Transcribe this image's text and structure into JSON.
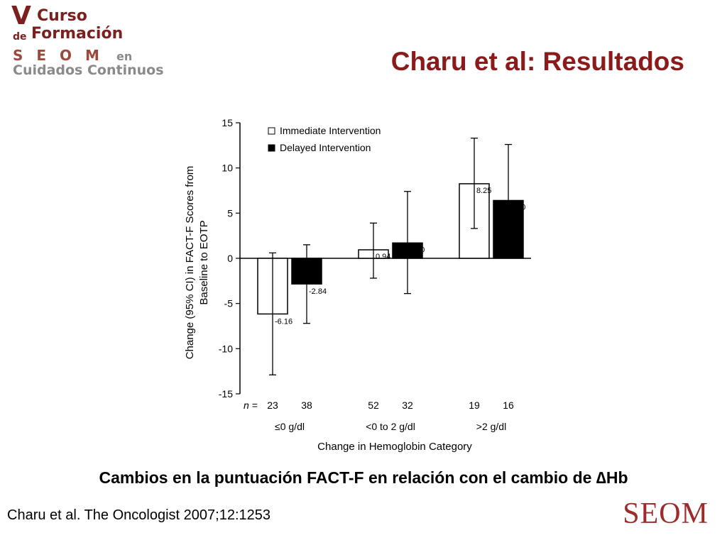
{
  "logo": {
    "line1_big": "V",
    "line1": "Curso",
    "line2_small": "de",
    "line2": "Formación",
    "line3": "S E O M",
    "line3_small": "en",
    "line4": "Cuidados Continuos"
  },
  "slide_title": "Charu et al: Resultados",
  "caption": "Cambios en la puntuación FACT-F en relación con el cambio de ∆Hb",
  "citation": "Charu et al. The Oncologist 2007;12:1253",
  "brand": "SEOM",
  "colors": {
    "title": "#8b1a1a",
    "immediate_fill": "#ffffff",
    "delayed_fill": "#000000"
  },
  "chart_data": {
    "type": "bar",
    "xlabel": "Change in Hemoglobin Category",
    "ylabel_line1": "Change (95% CI) in FACT-F Scores from",
    "ylabel_line2": "Baseline to EOTP",
    "ylim": [
      -15,
      15
    ],
    "yticks": [
      15,
      10,
      5,
      0,
      -5,
      -10,
      -15
    ],
    "legend_position": "top-left",
    "categories": [
      "≤0 g/dl",
      "<0 to 2 g/dl",
      ">2 g/dl"
    ],
    "n_label": "n =",
    "series": [
      {
        "name": "Immediate Intervention",
        "values": [
          -6.16,
          0.94,
          8.25
        ],
        "value_labels": [
          "-6.16",
          "0.94",
          "8.25"
        ],
        "ci_low": [
          -12.9,
          -2.2,
          3.3
        ],
        "ci_high": [
          0.6,
          3.9,
          13.3
        ],
        "n": [
          "23",
          "52",
          "19"
        ]
      },
      {
        "name": "Delayed Intervention",
        "values": [
          -2.84,
          1.7,
          6.4
        ],
        "value_labels": [
          "-2.84",
          "1.70",
          "6.40"
        ],
        "ci_low": [
          -7.2,
          -3.9,
          0.3
        ],
        "ci_high": [
          1.5,
          7.4,
          12.6
        ],
        "n": [
          "38",
          "32",
          "16"
        ]
      }
    ]
  }
}
